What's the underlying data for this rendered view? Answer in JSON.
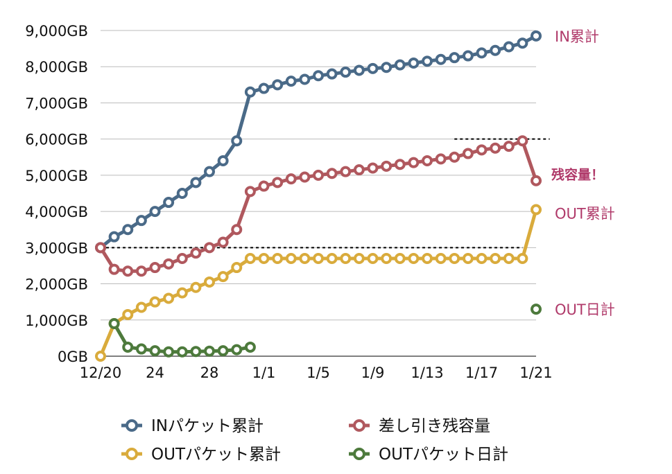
{
  "chart_data": {
    "type": "line",
    "title": "",
    "xlabel": "",
    "ylabel": "",
    "y_unit": "GB",
    "ylim": [
      0,
      9000
    ],
    "y_ticks": [
      0,
      1000,
      2000,
      3000,
      4000,
      5000,
      6000,
      7000,
      8000,
      9000
    ],
    "y_tick_labels": [
      "0GB",
      "1,000GB",
      "2,000GB",
      "3,000GB",
      "4,000GB",
      "5,000GB",
      "6,000GB",
      "7,000GB",
      "8,000GB",
      "9,000GB"
    ],
    "x": [
      "12/20",
      "12/21",
      "12/22",
      "12/23",
      "12/24",
      "12/25",
      "12/26",
      "12/27",
      "12/28",
      "12/29",
      "12/30",
      "12/31",
      "1/1",
      "1/2",
      "1/3",
      "1/4",
      "1/5",
      "1/6",
      "1/7",
      "1/8",
      "1/9",
      "1/10",
      "1/11",
      "1/12",
      "1/13",
      "1/14",
      "1/15",
      "1/16",
      "1/17",
      "1/18",
      "1/19",
      "1/20",
      "1/21"
    ],
    "x_tick_labels": [
      "12/20",
      "24",
      "28",
      "1/1",
      "1/5",
      "1/9",
      "1/13",
      "1/17",
      "1/21"
    ],
    "grid": true,
    "legend_position": "bottom",
    "series": [
      {
        "name": "INパケット累計",
        "color": "#4a6a88",
        "values": [
          3000,
          3300,
          3500,
          3750,
          4000,
          4250,
          4500,
          4800,
          5100,
          5400,
          5950,
          7300,
          7400,
          7500,
          7600,
          7650,
          7750,
          7800,
          7850,
          7900,
          7950,
          7980,
          8050,
          8100,
          8150,
          8200,
          8250,
          8300,
          8380,
          8450,
          8550,
          8650,
          8850
        ]
      },
      {
        "name": "差し引き残容量",
        "color": "#b0585e",
        "values": [
          3000,
          2400,
          2350,
          2350,
          2450,
          2550,
          2700,
          2850,
          3000,
          3150,
          3500,
          4550,
          4700,
          4800,
          4900,
          4950,
          5000,
          5050,
          5100,
          5150,
          5200,
          5250,
          5300,
          5350,
          5400,
          5450,
          5500,
          5600,
          5700,
          5750,
          5800,
          5950,
          4850
        ]
      },
      {
        "name": "OUTパケット累計",
        "color": "#d9ab3c",
        "values": [
          0,
          900,
          1150,
          1350,
          1500,
          1600,
          1750,
          1900,
          2050,
          2200,
          2450,
          2700,
          2700,
          2700,
          2700,
          2700,
          2700,
          2700,
          2700,
          2700,
          2700,
          2700,
          2700,
          2700,
          2700,
          2700,
          2700,
          2700,
          2700,
          2700,
          2700,
          2700,
          4050
        ]
      },
      {
        "name": "OUTパケット日計",
        "color": "#4d7a3c",
        "values": [
          null,
          900,
          250,
          200,
          150,
          120,
          120,
          130,
          140,
          150,
          180,
          250,
          null,
          null,
          null,
          null,
          null,
          null,
          null,
          null,
          null,
          null,
          null,
          null,
          null,
          null,
          null,
          null,
          null,
          null,
          null,
          null,
          1300
        ]
      }
    ],
    "reference_lines": [
      {
        "y": 3000,
        "style": "dotted",
        "from_index": 0,
        "to_index": 31
      },
      {
        "y": 6000,
        "style": "dotted",
        "from_index": 26,
        "to_index": 33
      }
    ],
    "annotations": [
      {
        "text": "IN累計",
        "color": "#b03a6a",
        "series_index": 0,
        "value": 8850
      },
      {
        "text": "残容量！",
        "color": "#b03a6a",
        "series_index": 1,
        "value": 5050,
        "bold": true
      },
      {
        "text": "OUT累計",
        "color": "#b03a6a",
        "series_index": 2,
        "value": 3950
      },
      {
        "text": "OUT日計",
        "color": "#b03a6a",
        "series_index": 3,
        "value": 1300
      }
    ]
  }
}
